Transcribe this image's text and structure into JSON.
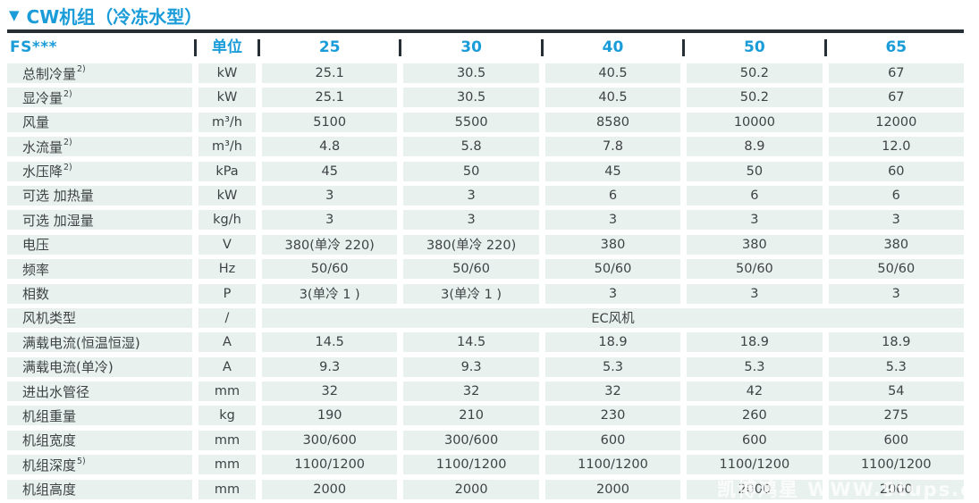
{
  "title": {
    "icon": "▼",
    "text": "CW机组（冷冻水型）"
  },
  "colors": {
    "accent": "#1a9cd9",
    "dark": "#262f35",
    "rowbg": "#e9f1ee",
    "text": "#3e4245"
  },
  "table": {
    "header": {
      "model_label": "FS***",
      "unit_label": "单位",
      "columns": [
        "25",
        "30",
        "40",
        "50",
        "65"
      ]
    },
    "rows": [
      {
        "label": "总制冷量",
        "sup": "2)",
        "unit": "kW",
        "values": [
          "25.1",
          "30.5",
          "40.5",
          "50.2",
          "67"
        ]
      },
      {
        "label": "显冷量",
        "sup": "2)",
        "unit": "kW",
        "values": [
          "25.1",
          "30.5",
          "40.5",
          "50.2",
          "67"
        ]
      },
      {
        "label": "风量",
        "sup": "",
        "unit": "m³/h",
        "values": [
          "5100",
          "5500",
          "8580",
          "10000",
          "12000"
        ]
      },
      {
        "label": "水流量",
        "sup": "2)",
        "unit": "m³/h",
        "values": [
          "4.8",
          "5.8",
          "7.8",
          "8.9",
          "12.0"
        ]
      },
      {
        "label": "水压降",
        "sup": "2)",
        "unit": "kPa",
        "values": [
          "45",
          "50",
          "45",
          "50",
          "60"
        ]
      },
      {
        "label": "可选 加热量",
        "sup": "",
        "unit": "kW",
        "values": [
          "3",
          "3",
          "6",
          "6",
          "6"
        ]
      },
      {
        "label": "可选 加湿量",
        "sup": "",
        "unit": "kg/h",
        "values": [
          "3",
          "3",
          "3",
          "3",
          "3"
        ]
      },
      {
        "label": "电压",
        "sup": "",
        "unit": "V",
        "values": [
          "380(单冷 220)",
          "380(单冷 220)",
          "380",
          "380",
          "380"
        ]
      },
      {
        "label": "频率",
        "sup": "",
        "unit": "Hz",
        "values": [
          "50/60",
          "50/60",
          "50/60",
          "50/60",
          "50/60"
        ]
      },
      {
        "label": "相数",
        "sup": "",
        "unit": "P",
        "values": [
          "3(单冷 1 )",
          "3(单冷 1 )",
          "3",
          "3",
          "3"
        ]
      },
      {
        "label": "风机类型",
        "sup": "",
        "unit": "/",
        "merged": "EC风机"
      },
      {
        "label": "满载电流(恒温恒湿)",
        "sup": "",
        "unit": "A",
        "values": [
          "14.5",
          "14.5",
          "18.9",
          "18.9",
          "18.9"
        ]
      },
      {
        "label": "满载电流(单冷)",
        "sup": "",
        "unit": "A",
        "values": [
          "9.3",
          "9.3",
          "5.3",
          "5.3",
          "5.3"
        ]
      },
      {
        "label": "进出水管径",
        "sup": "",
        "unit": "mm",
        "values": [
          "32",
          "32",
          "32",
          "42",
          "54"
        ]
      },
      {
        "label": "机组重量",
        "sup": "",
        "unit": "kg",
        "values": [
          "190",
          "210",
          "230",
          "260",
          "275"
        ]
      },
      {
        "label": "机组宽度",
        "sup": "",
        "unit": "mm",
        "values": [
          "300/600",
          "300/600",
          "600",
          "600",
          "600"
        ]
      },
      {
        "label": "机组深度",
        "sup": "5)",
        "unit": "mm",
        "values": [
          "1100/1200",
          "1100/1200",
          "1100/1200",
          "1100/1200",
          "1100/1200"
        ]
      },
      {
        "label": "机组高度",
        "sup": "",
        "unit": "mm",
        "values": [
          "2000",
          "2000",
          "2000",
          "2000",
          "2000"
        ]
      }
    ]
  },
  "watermark": {
    "text": "凯博鸿星 WWW.9tups.c"
  }
}
